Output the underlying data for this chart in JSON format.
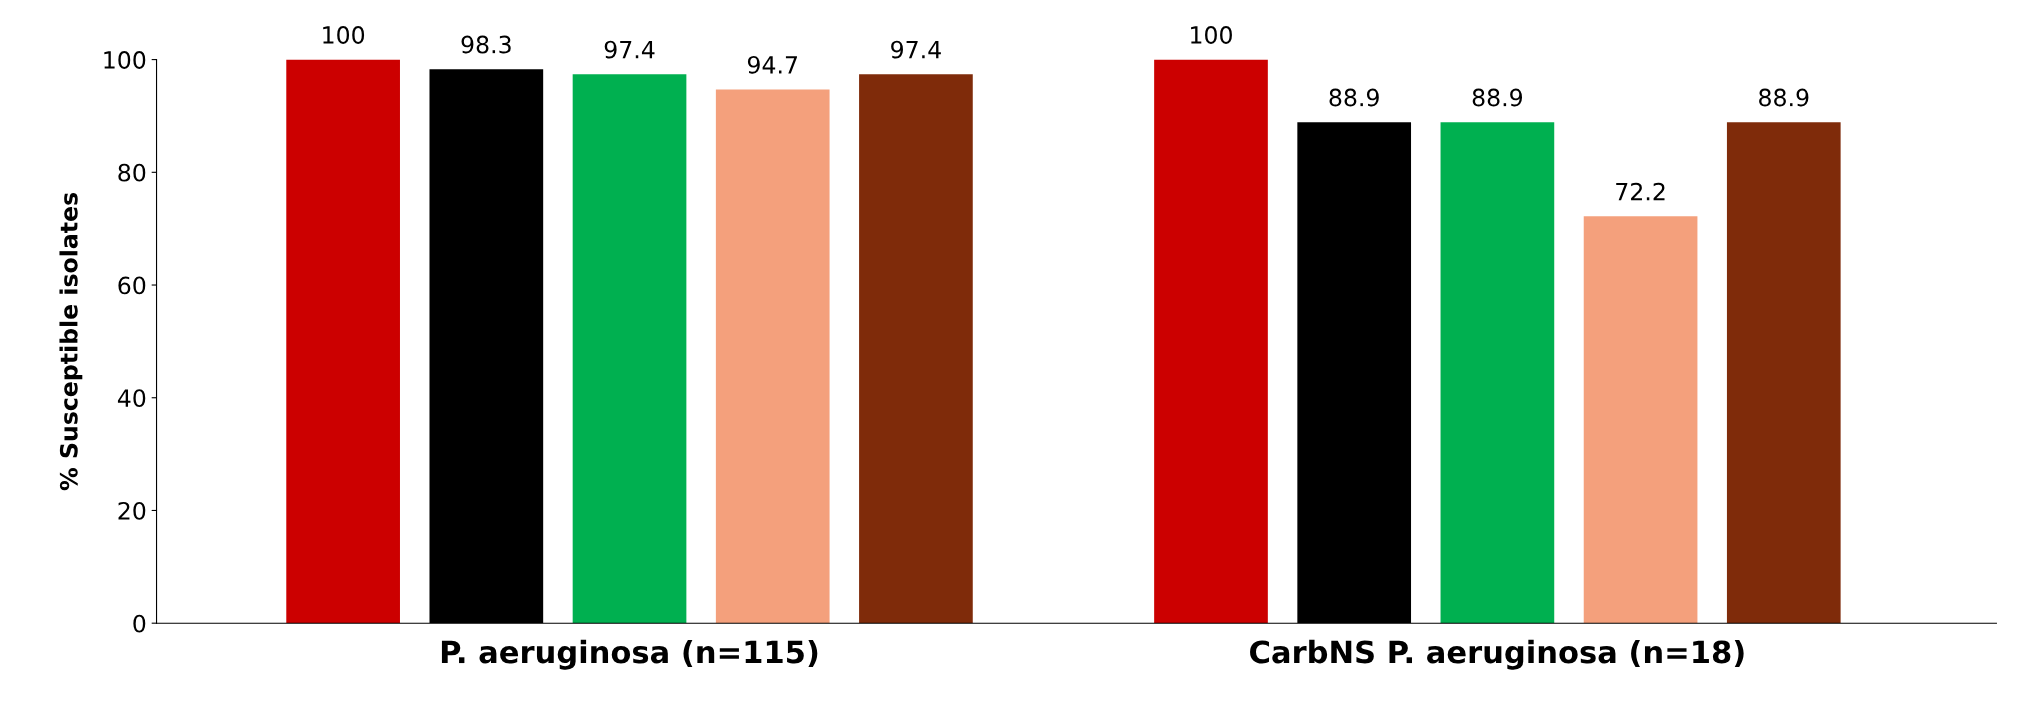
{
  "chart_data": {
    "type": "bar",
    "ylabel": "% Susceptible isolates",
    "categories": [
      "P. aeruginosa (n=115)",
      "CarbNS P. aeruginosa (n=18)"
    ],
    "series": [
      {
        "color": "#cc0000",
        "values": [
          100,
          100
        ]
      },
      {
        "color": "#000000",
        "values": [
          98.3,
          88.9
        ]
      },
      {
        "color": "#00b050",
        "values": [
          97.4,
          88.9
        ]
      },
      {
        "color": "#f4a07c",
        "values": [
          94.7,
          72.2
        ]
      },
      {
        "color": "#7f2b0a",
        "values": [
          97.4,
          88.9
        ]
      }
    ],
    "ylim": [
      0,
      100
    ],
    "yticks": [
      0,
      20,
      40,
      60,
      80,
      100
    ],
    "data_labels": true,
    "grid": false
  }
}
